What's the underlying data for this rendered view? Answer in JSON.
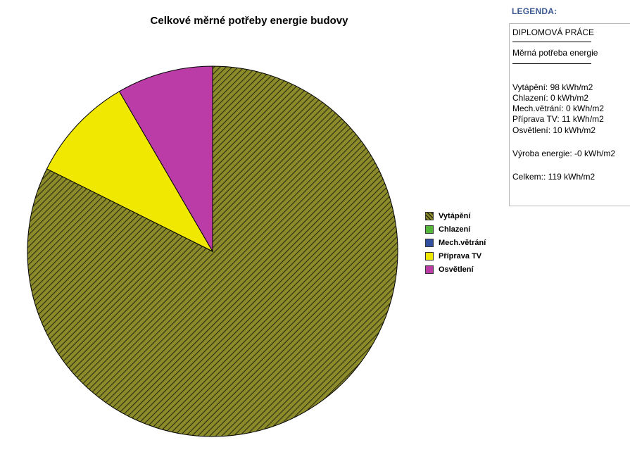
{
  "chart_data": {
    "type": "pie",
    "title": "Celkové měrné potřeby energie budovy",
    "legend_position": "right",
    "slices": [
      {
        "name": "Vytápění",
        "value": 98,
        "color": "#8b8b2a",
        "pattern": "hatched"
      },
      {
        "name": "Chlazení",
        "value": 0,
        "color": "#55b63c"
      },
      {
        "name": "Mech.větrání",
        "value": 0,
        "color": "#3350a0"
      },
      {
        "name": "Příprava TV",
        "value": 11,
        "color": "#f0e800"
      },
      {
        "name": "Osvětlení",
        "value": 10,
        "color": "#bb3ca7"
      }
    ]
  },
  "legenda": {
    "heading": "LEGENDA:",
    "project": "DIPLOMOVÁ PRÁCE",
    "subtitle": "Měrná potřeba energie",
    "lines": [
      "Vytápění: 98 kWh/m2",
      "Chlazení: 0 kWh/m2",
      "Mech.větrání: 0 kWh/m2",
      "Příprava TV: 11 kWh/m2",
      "Osvětlení: 10 kWh/m2"
    ],
    "production": "Výroba energie: -0 kWh/m2",
    "total": "Celkem:: 119 kWh/m2"
  }
}
